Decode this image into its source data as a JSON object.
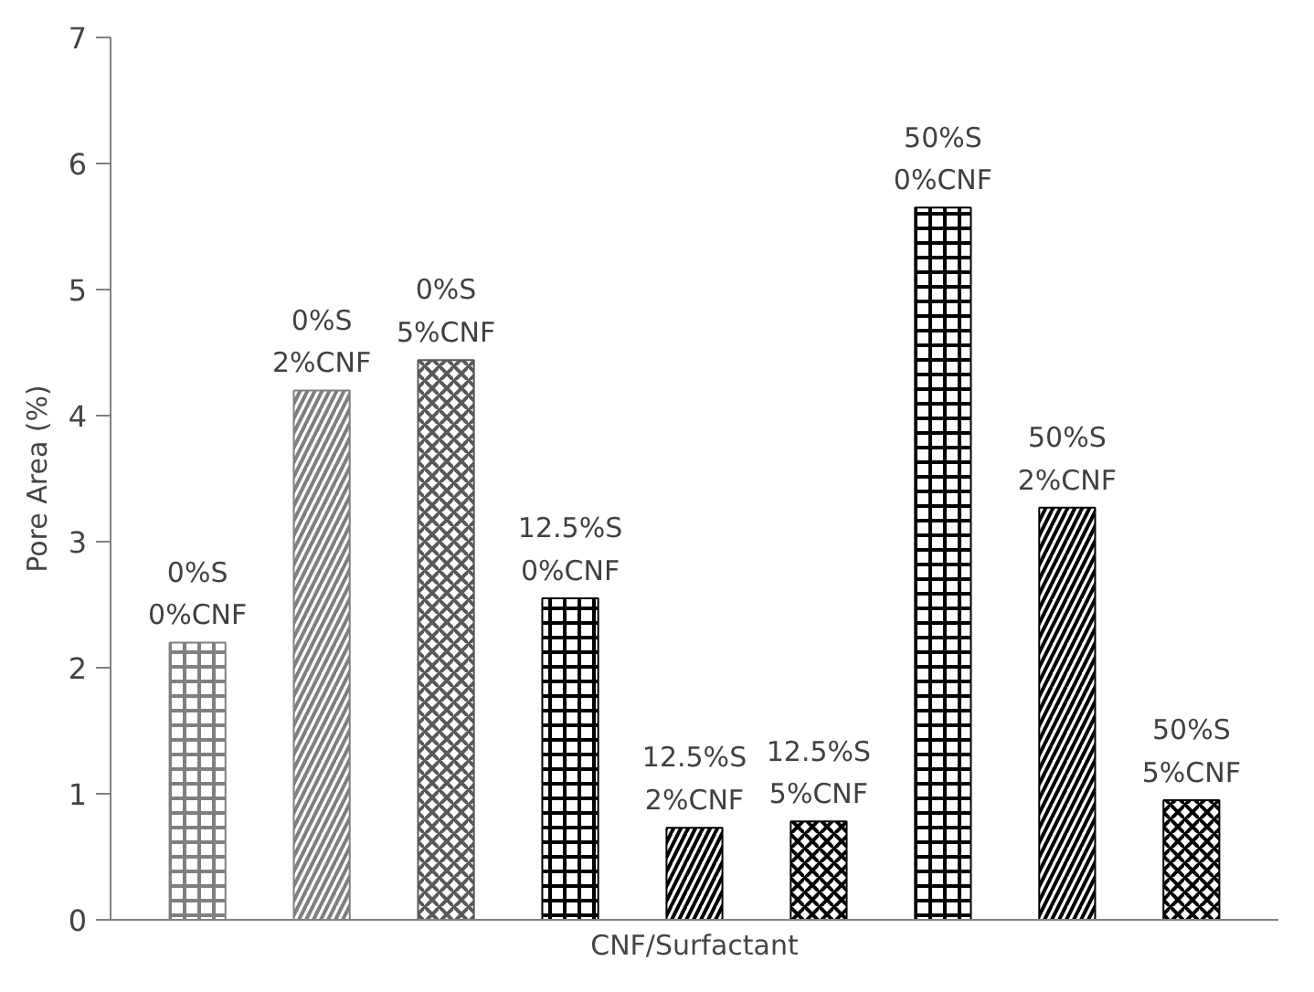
{
  "chart_data": {
    "type": "bar",
    "xlabel": "CNF/Surfactant",
    "ylabel": "Pore Area (%)",
    "categories": [
      "0%S\n0%CNF",
      "0%S\n2%CNF",
      "0%S\n5%CNF",
      "12.5%S\n0%CNF",
      "12.5%S\n2%CNF",
      "12.5%S\n5%CNF",
      "50%S\n0%CNF",
      "50%S\n2%CNF",
      "50%S\n5%CNF"
    ],
    "values": [
      2.2,
      4.2,
      4.44,
      2.55,
      0.73,
      0.78,
      5.65,
      3.27,
      0.95
    ],
    "colors": [
      "#7f7f7f",
      "#7f7f7f",
      "#595959",
      "#000000",
      "#000000",
      "#000000",
      "#000000",
      "#000000",
      "#000000"
    ],
    "ylim": [
      0,
      7
    ],
    "yticks": [
      0,
      1,
      2,
      3,
      4,
      5,
      6,
      7
    ],
    "grid": false
  }
}
